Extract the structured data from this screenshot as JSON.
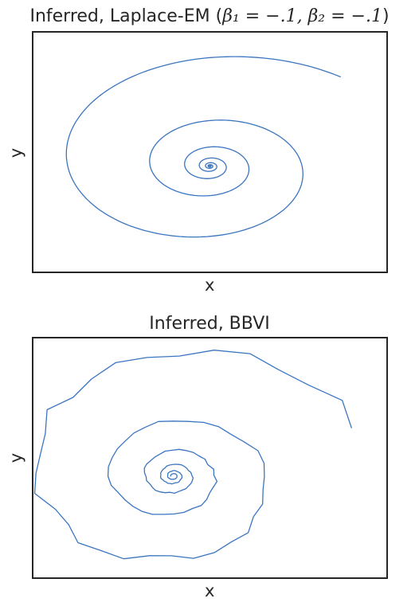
{
  "figure": {
    "line_color": "#3b75c0",
    "frame_color": "#262626",
    "background": "#ffffff"
  },
  "chart_data": [
    {
      "type": "line",
      "title": "Inferred, Laplace-EM (β₁ = −.1, β₂ = −.1)",
      "title_prefix": "Inferred, Laplace-EM (",
      "title_math": "β₁ = −.1, β₂ = −.1",
      "title_suffix": ")",
      "xlabel": "x",
      "ylabel": "y",
      "grid": false,
      "legend": "none",
      "xticks": [],
      "yticks": [],
      "xlim": [
        -1.45,
        1.45
      ],
      "ylim": [
        -0.95,
        1.2
      ],
      "series": [
        {
          "spiral": {
            "center": [
              0.0,
              0.0
            ],
            "start_radius": 1.95,
            "start_angle_deg": 48,
            "turns": 6.5,
            "decay_per_turn": 0.42,
            "x_scale": 0.82,
            "y_scale": 0.55,
            "noise": 0.0
          }
        }
      ]
    },
    {
      "type": "line",
      "title": "Inferred, BBVI",
      "xlabel": "x",
      "ylabel": "y",
      "grid": false,
      "legend": "none",
      "xticks": [],
      "yticks": [],
      "xlim": [
        -1.15,
        1.75
      ],
      "ylim": [
        -0.85,
        1.15
      ],
      "series": [
        {
          "spiral": {
            "center": [
              0.0,
              0.0
            ],
            "start_radius": 1.95,
            "start_angle_deg": 20,
            "turns": 5.5,
            "decay_per_turn": 0.45,
            "x_scale": 0.83,
            "y_scale": 0.62,
            "noise": 0.05
          }
        }
      ]
    }
  ]
}
